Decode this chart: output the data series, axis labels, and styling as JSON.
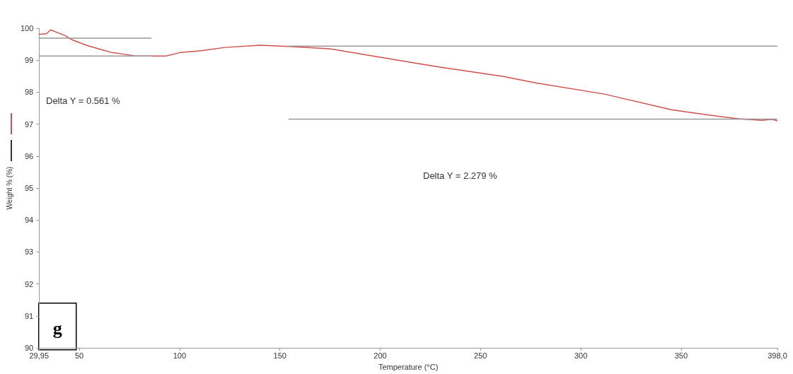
{
  "chart_data": {
    "type": "line",
    "xlabel": "Temperature (°C)",
    "ylabel": "Weight % (%)",
    "xlim": [
      29.95,
      398
    ],
    "xticks": [
      {
        "value": 29.95,
        "label": "29,95"
      },
      50,
      100,
      150,
      200,
      250,
      300,
      350,
      {
        "value": 398,
        "label": "398,0"
      }
    ],
    "ylim": [
      90,
      100
    ],
    "yticks": [
      90,
      91,
      92,
      93,
      94,
      95,
      96,
      97,
      98,
      99,
      100
    ],
    "grid": false,
    "marker": "none",
    "line_style": "solid",
    "annotations": [
      "Delta Y = 0.561 %",
      "Delta Y = 2.279 %",
      "g"
    ],
    "series": [
      {
        "color": "#d05050",
        "x": [
          30,
          33.6,
          35.7,
          39.4,
          42.9,
          46.4,
          53.5,
          60.5,
          66.3,
          72.2,
          78,
          85,
          93.2,
          100.2,
          110.8,
          122.5,
          140,
          154.7,
          174.8,
          194.8,
          228.2,
          261.6,
          278.4,
          311.8,
          345.2,
          361.9,
          378.6,
          390.3,
          395.3,
          397.8
        ],
        "values": [
          99.81,
          99.83,
          99.95,
          99.86,
          99.77,
          99.64,
          99.47,
          99.34,
          99.24,
          99.19,
          99.13,
          99.13,
          99.13,
          99.24,
          99.3,
          99.4,
          99.47,
          99.43,
          99.36,
          99.15,
          98.8,
          98.49,
          98.28,
          97.94,
          97.45,
          97.3,
          97.17,
          97.12,
          97.15,
          97.11
        ]
      },
      {
        "color": "#999999",
        "x": [
          29.95,
          85.8
        ],
        "values": [
          99.69,
          99.69
        ]
      },
      {
        "color": "#999999",
        "x": [
          29.95,
          85.8
        ],
        "values": [
          99.13,
          99.13
        ]
      },
      {
        "color": "#999999",
        "x": [
          154.5,
          397.8
        ],
        "values": [
          99.44,
          99.44
        ]
      },
      {
        "color": "#999999",
        "x": [
          154.5,
          397.8
        ],
        "values": [
          97.16,
          97.16
        ]
      }
    ]
  }
}
